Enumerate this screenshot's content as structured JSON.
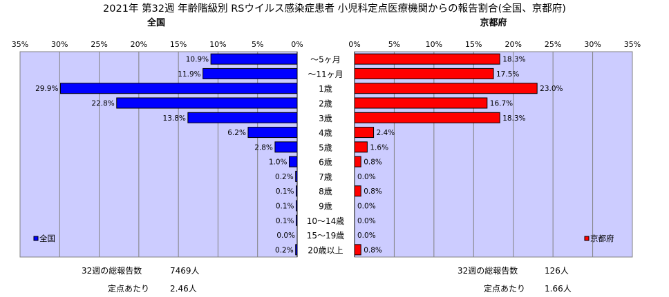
{
  "chart_data": {
    "type": "bar",
    "title": "2021年 第32週 年齢階級別 RSウイルス感染症患者 小児科定点医療機関からの報告割合(全国、京都府)",
    "categories": [
      "～5ヶ月",
      "～11ヶ月",
      "1歳",
      "2歳",
      "3歳",
      "4歳",
      "5歳",
      "6歳",
      "7歳",
      "8歳",
      "9歳",
      "10～14歳",
      "15～19歳",
      "20歳以上"
    ],
    "xlim": [
      0,
      35
    ],
    "xticks": [
      0,
      5,
      10,
      15,
      20,
      25,
      30,
      35
    ],
    "tick_suffix": "%",
    "series": [
      {
        "name": "全国",
        "panel_title": "全国",
        "color": "#0000ff",
        "values": [
          10.9,
          11.9,
          29.9,
          22.8,
          13.8,
          6.2,
          2.8,
          1.0,
          0.2,
          0.1,
          0.1,
          0.1,
          0.0,
          0.2
        ],
        "value_labels": [
          "10.9%",
          "11.9%",
          "29.9%",
          "22.8%",
          "13.8%",
          "6.2%",
          "2.8%",
          "1.0%",
          "0.2%",
          "0.1%",
          "0.1%",
          "0.1%",
          "0.0%",
          "0.2%"
        ]
      },
      {
        "name": "京都府",
        "panel_title": "京都府",
        "color": "#ff0000",
        "values": [
          18.3,
          17.5,
          23.0,
          16.7,
          18.3,
          2.4,
          1.6,
          0.8,
          0.0,
          0.8,
          0.0,
          0.0,
          0.0,
          0.8
        ],
        "value_labels": [
          "18.3%",
          "17.5%",
          "23.0%",
          "16.7%",
          "18.3%",
          "2.4%",
          "1.6%",
          "0.8%",
          "0.0%",
          "0.8%",
          "0.0%",
          "0.0%",
          "0.0%",
          "0.8%"
        ]
      }
    ],
    "plot_background": "#ccccff",
    "grid": true,
    "legend_placement": "bottom-left / bottom-right of each panel"
  },
  "footer": {
    "left": {
      "total_label": "32週の総報告数",
      "total_value": "7469人",
      "per_label": "定点あたり",
      "per_value": "2.46人"
    },
    "right": {
      "total_label": "32週の総報告数",
      "total_value": "126人",
      "per_label": "定点あたり",
      "per_value": "1.66人"
    }
  }
}
